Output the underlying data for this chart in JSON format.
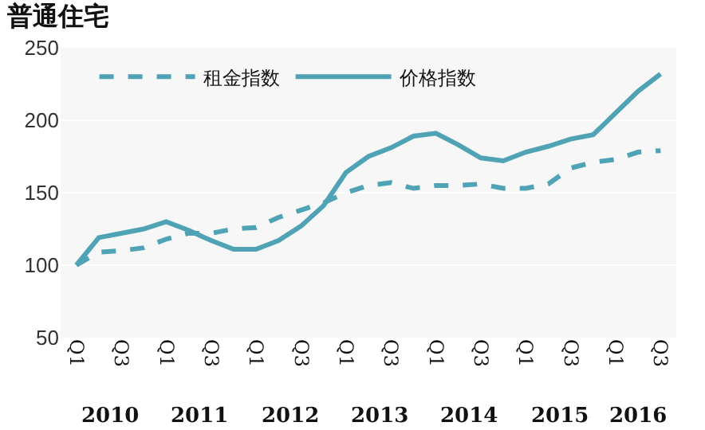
{
  "chart_data": {
    "type": "line",
    "title": "普通住宅",
    "categories": [
      "Q1",
      null,
      "Q3",
      null,
      "Q1",
      null,
      "Q3",
      null,
      "Q1",
      null,
      "Q3",
      null,
      "Q1",
      null,
      "Q3",
      null,
      "Q1",
      null,
      "Q3",
      null,
      "Q1",
      null,
      "Q3",
      null,
      "Q1",
      null,
      "Q3"
    ],
    "series": [
      {
        "name": "租金指数",
        "color": "#4fa3b5",
        "line_style": "dashed",
        "values": [
          100,
          109,
          110,
          112,
          118,
          122,
          122,
          125,
          126,
          133,
          138,
          143,
          150,
          155,
          157,
          153,
          155,
          155,
          156,
          153,
          153,
          156,
          167,
          171,
          173,
          178,
          179
        ]
      },
      {
        "name": "价格指数",
        "color": "#4fa3b5",
        "line_style": "solid",
        "values": [
          100,
          119,
          122,
          125,
          130,
          124,
          117,
          111,
          111,
          117,
          127,
          141,
          164,
          175,
          181,
          189,
          191,
          183,
          174,
          172,
          178,
          182,
          187,
          190,
          205,
          220,
          232
        ]
      }
    ],
    "annotations": [
      "2010",
      "2011",
      "2012",
      "2013",
      "2014",
      "2015",
      "2016"
    ],
    "ylim": [
      50,
      250
    ],
    "yticks": [
      50,
      100,
      150,
      200,
      250
    ],
    "grid": "y",
    "legend": "top left",
    "marker": "none"
  }
}
